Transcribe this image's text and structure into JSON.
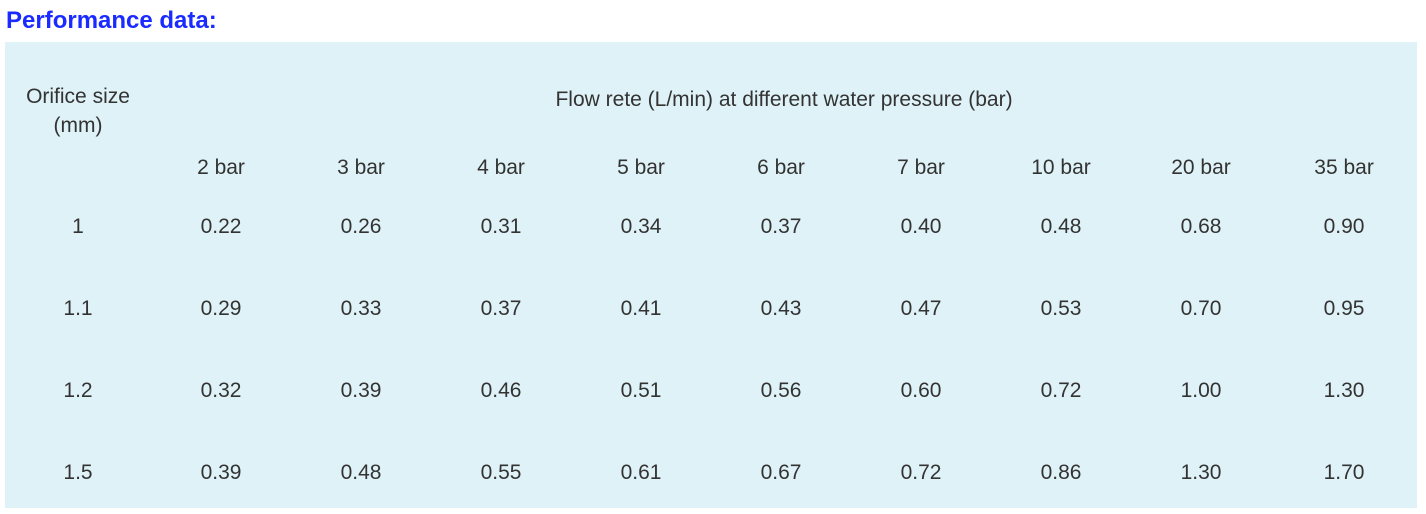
{
  "heading": "Performance data:",
  "table": {
    "orifice_header_line1": "Orifice size",
    "orifice_header_line2": "(mm)",
    "flow_header": "Flow rete (L/min) at different water pressure (bar)",
    "pressures": [
      "2 bar",
      "3 bar",
      "4 bar",
      "5 bar",
      "6 bar",
      "7 bar",
      "10 bar",
      "20 bar",
      "35 bar"
    ],
    "rows": [
      {
        "orifice": "1",
        "values": [
          "0.22",
          "0.26",
          "0.31",
          "0.34",
          "0.37",
          "0.40",
          "0.48",
          "0.68",
          "0.90"
        ]
      },
      {
        "orifice": "1.1",
        "values": [
          "0.29",
          "0.33",
          "0.37",
          "0.41",
          "0.43",
          "0.47",
          "0.53",
          "0.70",
          "0.95"
        ]
      },
      {
        "orifice": "1.2",
        "values": [
          "0.32",
          "0.39",
          "0.46",
          "0.51",
          "0.56",
          "0.60",
          "0.72",
          "1.00",
          "1.30"
        ]
      },
      {
        "orifice": "1.5",
        "values": [
          "0.39",
          "0.48",
          "0.55",
          "0.61",
          "0.67",
          "0.72",
          "0.86",
          "1.30",
          "1.70"
        ]
      }
    ]
  },
  "colors": {
    "heading": "#1a2bff",
    "panel_background": "#dff2f7",
    "text": "#333333"
  }
}
